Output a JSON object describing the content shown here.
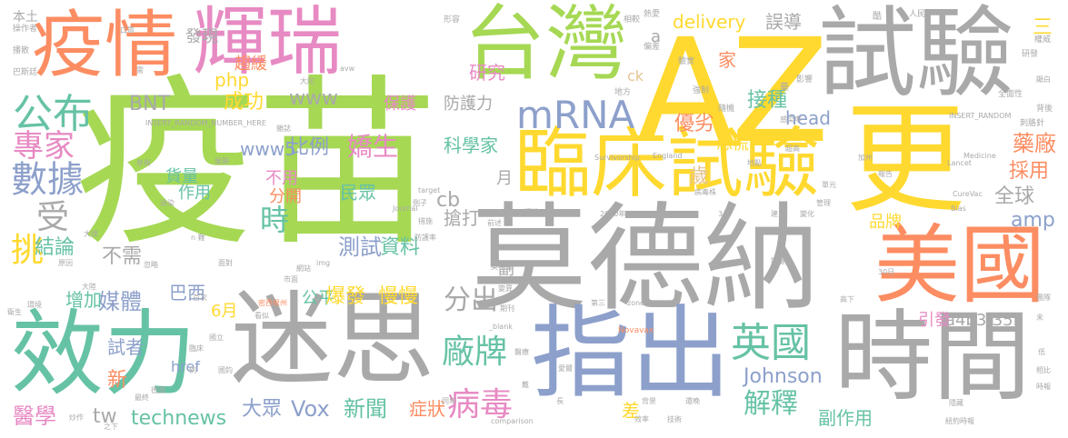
{
  "palette": {
    "gray": "#a9a9a9",
    "green": "#a6d854",
    "orange": "#fc8d62",
    "blue": "#8da0cb",
    "pink": "#e78ac3",
    "yellow": "#ffd92f",
    "teal": "#66c2a5",
    "tan": "#e5c494"
  },
  "words": [
    {
      "text": "疫苗",
      "color": "green"
    },
    {
      "text": "莫德納",
      "color": "gray"
    },
    {
      "text": "AZ",
      "color": "yellow"
    },
    {
      "text": "疫情",
      "color": "orange"
    },
    {
      "text": "輝瑞",
      "color": "pink"
    },
    {
      "text": "台灣",
      "color": "green"
    },
    {
      "text": "試驗",
      "color": "gray"
    },
    {
      "text": "臨床試驗",
      "color": "yellow"
    },
    {
      "text": "更",
      "color": "yellow"
    },
    {
      "text": "美國",
      "color": "orange"
    },
    {
      "text": "迷思",
      "color": "gray"
    },
    {
      "text": "指出",
      "color": "blue"
    },
    {
      "text": "效力",
      "color": "teal"
    },
    {
      "text": "時間",
      "color": "gray"
    },
    {
      "text": "mRNA",
      "color": "blue"
    },
    {
      "text": "公布",
      "color": "teal"
    },
    {
      "text": "專家",
      "color": "pink"
    },
    {
      "text": "數據",
      "color": "blue"
    },
    {
      "text": "受",
      "color": "gray"
    },
    {
      "text": "挑",
      "color": "yellow"
    },
    {
      "text": "結論",
      "color": "teal"
    },
    {
      "text": "不需",
      "color": "gray"
    },
    {
      "text": "媒體",
      "color": "blue"
    },
    {
      "text": "試者",
      "color": "blue"
    },
    {
      "text": "新",
      "color": "orange"
    },
    {
      "text": "醫學",
      "color": "pink"
    },
    {
      "text": "tw",
      "color": "gray"
    },
    {
      "text": "technews",
      "color": "teal"
    },
    {
      "text": "大眾",
      "color": "blue"
    },
    {
      "text": "Vox",
      "color": "blue"
    },
    {
      "text": "新聞",
      "color": "teal"
    },
    {
      "text": "病毒",
      "color": "pink"
    },
    {
      "text": "症狀",
      "color": "orange"
    },
    {
      "text": "解釋",
      "color": "teal"
    },
    {
      "text": "副作用",
      "color": "teal"
    },
    {
      "text": "英國",
      "color": "teal"
    },
    {
      "text": "廠牌",
      "color": "teal"
    },
    {
      "text": "分出",
      "color": "gray"
    },
    {
      "text": "Johnson",
      "color": "blue"
    },
    {
      "text": "a4b3f35b",
      "color": "gray"
    },
    {
      "text": "引發",
      "color": "pink"
    },
    {
      "text": "amp",
      "color": "blue"
    },
    {
      "text": "全球",
      "color": "gray"
    },
    {
      "text": "採用",
      "color": "orange"
    },
    {
      "text": "藥廠",
      "color": "orange"
    },
    {
      "text": "品牌",
      "color": "yellow"
    },
    {
      "text": "接種",
      "color": "teal"
    },
    {
      "text": "head",
      "color": "blue"
    },
    {
      "text": "恐慌",
      "color": "yellow"
    },
    {
      "text": "歲",
      "color": "tan"
    },
    {
      "text": "優劣",
      "color": "orange"
    },
    {
      "text": "科學家",
      "color": "teal"
    },
    {
      "text": "嬌生",
      "color": "pink"
    },
    {
      "text": "比例",
      "color": "blue"
    },
    {
      "text": "www5",
      "color": "blue"
    },
    {
      "text": "防護力",
      "color": "gray"
    },
    {
      "text": "保護",
      "color": "pink"
    },
    {
      "text": "成功",
      "color": "yellow"
    },
    {
      "text": "www",
      "color": "gray"
    },
    {
      "text": "BNT",
      "color": "gray"
    },
    {
      "text": "研究",
      "color": "pink"
    },
    {
      "text": "家",
      "color": "orange"
    },
    {
      "text": "delivery",
      "color": "yellow"
    },
    {
      "text": "誤導",
      "color": "gray"
    },
    {
      "text": "發現",
      "color": "gray"
    },
    {
      "text": "趨緩",
      "color": "orange"
    },
    {
      "text": "php",
      "color": "yellow"
    },
    {
      "text": "時",
      "color": "teal"
    },
    {
      "text": "巴西",
      "color": "blue"
    },
    {
      "text": "6月",
      "color": "yellow"
    },
    {
      "text": "公平",
      "color": "teal"
    },
    {
      "text": "爆發",
      "color": "yellow"
    },
    {
      "text": "慢慢",
      "color": "yellow"
    },
    {
      "text": "測試",
      "color": "blue"
    },
    {
      "text": "資料",
      "color": "teal"
    },
    {
      "text": "民眾",
      "color": "teal"
    },
    {
      "text": "cb",
      "color": "gray"
    },
    {
      "text": "分開",
      "color": "orange"
    },
    {
      "text": "作用",
      "color": "teal"
    },
    {
      "text": "不用",
      "color": "pink"
    },
    {
      "text": "增加",
      "color": "teal"
    },
    {
      "text": "貨量",
      "color": "teal"
    },
    {
      "text": "搶打",
      "color": "gray"
    },
    {
      "text": "月",
      "color": "gray"
    },
    {
      "text": "副",
      "color": "gray"
    },
    {
      "text": "差",
      "color": "yellow"
    },
    {
      "text": "ck",
      "color": "tan"
    },
    {
      "text": "a",
      "color": "gray"
    },
    {
      "text": "三",
      "color": "yellow"
    },
    {
      "text": "href",
      "color": "blue"
    },
    {
      "text": "本土",
      "color": "gray"
    },
    {
      "text": "操作者",
      "color": "gray"
    },
    {
      "text": "播散",
      "color": "gray"
    },
    {
      "text": "巴斯廷",
      "color": "gray"
    },
    {
      "text": "人民",
      "color": "gray"
    },
    {
      "text": "熱愛",
      "color": "gray"
    },
    {
      "text": "偏差",
      "color": "gray"
    },
    {
      "text": "驗實",
      "color": "gray"
    },
    {
      "text": "相較",
      "color": "gray"
    },
    {
      "text": "酷",
      "color": "gray"
    },
    {
      "text": "權威",
      "color": "gray"
    },
    {
      "text": "研發",
      "color": "gray"
    },
    {
      "text": "影響",
      "color": "gray"
    },
    {
      "text": "地方",
      "color": "gray"
    },
    {
      "text": "強制",
      "color": "gray"
    },
    {
      "text": "藥",
      "color": "gray"
    },
    {
      "text": "全面性",
      "color": "gray"
    },
    {
      "text": "背後",
      "color": "gray"
    },
    {
      "text": "刺胳針",
      "color": "gray"
    },
    {
      "text": "INSERT_RANDOM",
      "color": "gray"
    },
    {
      "text": "INSERT_RANDOM_NUMBER_HERE",
      "color": "gray"
    },
    {
      "text": "Survivorship",
      "color": "gray"
    },
    {
      "text": "England",
      "color": "gray"
    },
    {
      "text": "Medicine",
      "color": "gray"
    },
    {
      "text": "Lancet",
      "color": "gray"
    },
    {
      "text": "CureVac",
      "color": "gray"
    },
    {
      "text": "Bias",
      "color": "gray"
    },
    {
      "text": "Novavax",
      "color": "orange"
    },
    {
      "text": "comparison",
      "color": "gray"
    },
    {
      "text": "zoneid",
      "color": "gray"
    },
    {
      "text": "2020年",
      "color": "gray"
    },
    {
      "text": "3月",
      "color": "gray"
    },
    {
      "text": "Journal",
      "color": "gray"
    },
    {
      "text": "target",
      "color": "gray"
    },
    {
      "text": "img",
      "color": "gray"
    },
    {
      "text": "_blank",
      "color": "gray"
    },
    {
      "text": "avw",
      "color": "gray"
    },
    {
      "text": "口罩",
      "color": "gray"
    },
    {
      "text": "需",
      "color": "gray"
    },
    {
      "text": "形容",
      "color": "gray"
    },
    {
      "text": "大陀",
      "color": "gray"
    },
    {
      "text": "隨機",
      "color": "gray"
    },
    {
      "text": "感染率",
      "color": "gray"
    },
    {
      "text": "雜誌",
      "color": "gray"
    },
    {
      "text": "超高",
      "color": "gray"
    },
    {
      "text": "加州",
      "color": "gray"
    },
    {
      "text": "地點",
      "color": "gray"
    },
    {
      "text": "報告",
      "color": "gray"
    },
    {
      "text": "單元",
      "color": "gray"
    },
    {
      "text": "管理",
      "color": "gray"
    },
    {
      "text": "建立",
      "color": "gray"
    },
    {
      "text": "變化",
      "color": "gray"
    },
    {
      "text": "病毒株",
      "color": "gray"
    },
    {
      "text": "頻道",
      "color": "gray"
    },
    {
      "text": "前述",
      "color": "gray"
    },
    {
      "text": "例子",
      "color": "gray"
    },
    {
      "text": "措施",
      "color": "gray"
    },
    {
      "text": "防護率",
      "color": "gray"
    },
    {
      "text": "原因",
      "color": "gray"
    },
    {
      "text": "大律",
      "color": "gray"
    },
    {
      "text": "忽略",
      "color": "gray"
    },
    {
      "text": "面對",
      "color": "gray"
    },
    {
      "text": "網站",
      "color": "gray"
    },
    {
      "text": "市面",
      "color": "gray"
    },
    {
      "text": "變異",
      "color": "gray"
    },
    {
      "text": "英格蘭",
      "color": "gray"
    },
    {
      "text": "期刊",
      "color": "gray"
    },
    {
      "text": "第三",
      "color": "gray"
    },
    {
      "text": "高下",
      "color": "gray"
    },
    {
      "text": "30日",
      "color": "gray"
    },
    {
      "text": "關鍵",
      "color": "gray"
    },
    {
      "text": "團隊",
      "color": "gray"
    },
    {
      "text": "未",
      "color": "gray"
    },
    {
      "text": "相比",
      "color": "gray"
    },
    {
      "text": "紐約時報",
      "color": "gray"
    },
    {
      "text": "隱藏",
      "color": "gray"
    },
    {
      "text": "低",
      "color": "gray"
    },
    {
      "text": "時報",
      "color": "gray"
    },
    {
      "text": "還晚",
      "color": "gray"
    },
    {
      "text": "技術",
      "color": "gray"
    },
    {
      "text": "效率",
      "color": "gray"
    },
    {
      "text": "背景",
      "color": "gray"
    },
    {
      "text": "醫療",
      "color": "gray"
    },
    {
      "text": "戴",
      "color": "gray"
    },
    {
      "text": "愛爾",
      "color": "gray"
    },
    {
      "text": "最終",
      "color": "gray"
    },
    {
      "text": "炒作",
      "color": "gray"
    },
    {
      "text": "之下",
      "color": "gray"
    },
    {
      "text": "德國",
      "color": "gray"
    },
    {
      "text": "環境",
      "color": "gray"
    },
    {
      "text": "首次",
      "color": "gray"
    },
    {
      "text": "密西根州",
      "color": "orange"
    },
    {
      "text": "看似",
      "color": "gray"
    },
    {
      "text": "例",
      "color": "gray"
    },
    {
      "text": "臨床",
      "color": "gray"
    },
    {
      "text": "同年",
      "color": "gray"
    },
    {
      "text": "長",
      "color": "gray"
    },
    {
      "text": "衛生",
      "color": "gray"
    },
    {
      "text": "n 難",
      "color": "gray"
    },
    {
      "text": "顯白",
      "color": "gray"
    },
    {
      "text": "大陸",
      "color": "gray"
    },
    {
      "text": "參與",
      "color": "gray"
    },
    {
      "text": "迷染",
      "color": "gray"
    },
    {
      "text": "展開",
      "color": "gray"
    },
    {
      "text": "國立",
      "color": "gray"
    },
    {
      "text": "國鈞",
      "color": "gray"
    }
  ]
}
